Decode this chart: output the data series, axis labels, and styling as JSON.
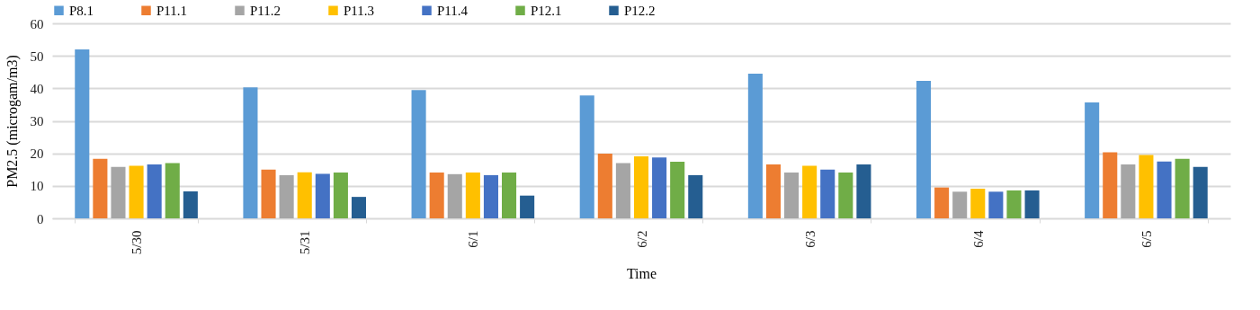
{
  "chart_data": {
    "type": "bar",
    "xlabel": "Time",
    "ylabel": "PM2.5 (microgam/m3)",
    "categories": [
      "5/30",
      "5/31",
      "6/1",
      "6/2",
      "6/3",
      "6/4",
      "6/5"
    ],
    "series": [
      {
        "name": "P8.1",
        "color": "#5b9bd5",
        "values": [
          52,
          40.3,
          39.5,
          37.8,
          44.5,
          42.3,
          35.7
        ]
      },
      {
        "name": "P11.1",
        "color": "#ed7d31",
        "values": [
          18.3,
          15,
          14.1,
          19.9,
          16.6,
          9.5,
          20.3
        ]
      },
      {
        "name": "P11.2",
        "color": "#a5a5a5",
        "values": [
          15.8,
          13.3,
          13.6,
          17,
          14.1,
          8.2,
          16.6
        ]
      },
      {
        "name": "P11.3",
        "color": "#ffc000",
        "values": [
          16.2,
          14.2,
          14.1,
          19.1,
          16.2,
          9.1,
          19.5
        ]
      },
      {
        "name": "P11.4",
        "color": "#4472c4",
        "values": [
          16.6,
          13.7,
          13.3,
          18.7,
          15,
          8.2,
          17.5
        ]
      },
      {
        "name": "P12.1",
        "color": "#70ad47",
        "values": [
          17,
          14.1,
          14.1,
          17.4,
          14.1,
          8.6,
          18.3
        ]
      },
      {
        "name": "P12.2",
        "color": "#255e91",
        "values": [
          8.3,
          6.6,
          7,
          13.3,
          16.6,
          8.6,
          15.8
        ]
      }
    ],
    "ylim": [
      0,
      60
    ],
    "yticks": [
      0,
      10,
      20,
      30,
      40,
      50,
      60
    ],
    "grid": "y",
    "legend": "top"
  }
}
